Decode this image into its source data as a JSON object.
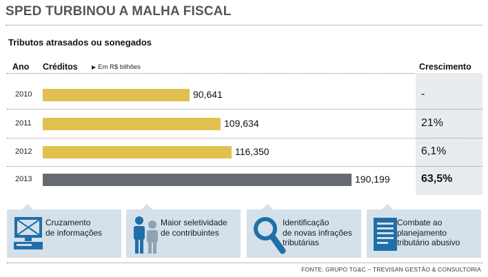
{
  "title": "SPED TURBINOU A MALHA FISCAL",
  "subtitle": "Tributos atrasados ou sonegados",
  "headers": {
    "year": "Ano",
    "credits": "Créditos",
    "unit": "Em R$ bilhões",
    "growth": "Crescimento"
  },
  "chart_data": {
    "type": "bar",
    "orientation": "horizontal",
    "title": "Tributos atrasados ou sonegados",
    "xlabel": "Créditos (Em R$ bilhões)",
    "ylabel": "Ano",
    "categories": [
      "2010",
      "2011",
      "2012",
      "2013"
    ],
    "values": [
      90.641,
      109.634,
      116.35,
      190.199
    ],
    "value_labels": [
      "90,641",
      "109,634",
      "116,350",
      "190,199"
    ],
    "growth_labels": [
      "-",
      "21%",
      "6,1%",
      "63,5%"
    ],
    "colors": [
      "#e2c04f",
      "#e2c04f",
      "#e2c04f",
      "#676a6e"
    ],
    "xlim": [
      0,
      190.199
    ]
  },
  "cards": [
    {
      "label_line1": "Cruzamento",
      "label_line2": "de informações",
      "label_line3": "",
      "icon": "computer-icon"
    },
    {
      "label_line1": "Maior seletividade",
      "label_line2": "de contribuintes",
      "label_line3": "",
      "icon": "people-icon"
    },
    {
      "label_line1": "Identificação",
      "label_line2": "de novas infrações",
      "label_line3": "tributárias",
      "icon": "magnifier-icon"
    },
    {
      "label_line1": "Combate ao",
      "label_line2": "planejamento",
      "label_line3": "tributário abusivo",
      "icon": "document-icon"
    }
  ],
  "source": "FONTE: GRUPO TG&C – TREVISAN GESTÃO & CONSULTORIA"
}
